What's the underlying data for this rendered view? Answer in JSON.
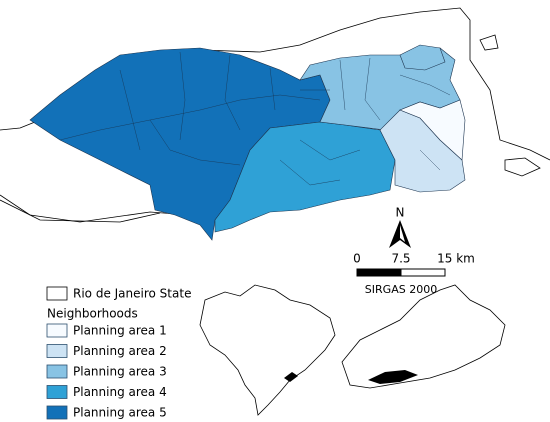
{
  "legend": {
    "state": {
      "label": "Rio de Janeiro State",
      "color": "#ffffff"
    },
    "title": "Neighborhoods",
    "items": [
      {
        "label": "Planning area 1",
        "color": "#f7fbff"
      },
      {
        "label": "Planning area 2",
        "color": "#cde3f4"
      },
      {
        "label": "Planning area 3",
        "color": "#88c3e4"
      },
      {
        "label": "Planning area 4",
        "color": "#2fa1d6"
      },
      {
        "label": "Planning area 5",
        "color": "#1271b8"
      }
    ]
  },
  "scale_bar": {
    "labels": [
      "0",
      "7.5",
      "15 km"
    ],
    "crs": "SIRGAS 2000"
  },
  "north_arrow": "N"
}
